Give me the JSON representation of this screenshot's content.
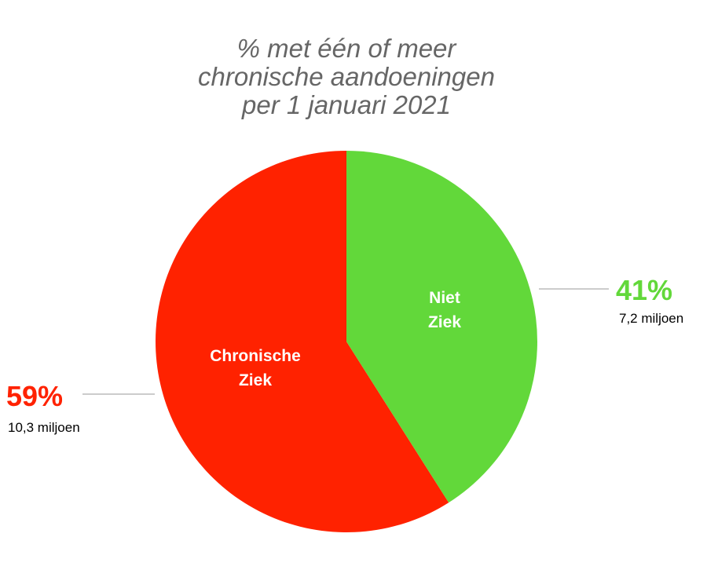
{
  "chart_data": {
    "type": "pie",
    "title": "% met één of meer\nchronische aandoeningen\nper 1 januari 2021",
    "categories": [
      "Niet Ziek",
      "Chronische Ziek"
    ],
    "values": [
      41,
      59
    ],
    "value_labels": [
      "41%",
      "59%"
    ],
    "counts": [
      7200000,
      10300000
    ],
    "count_labels": [
      "7,2 miljoen",
      "10,3 miljoen"
    ],
    "colors": [
      "#62d83a",
      "#ff2200"
    ]
  }
}
